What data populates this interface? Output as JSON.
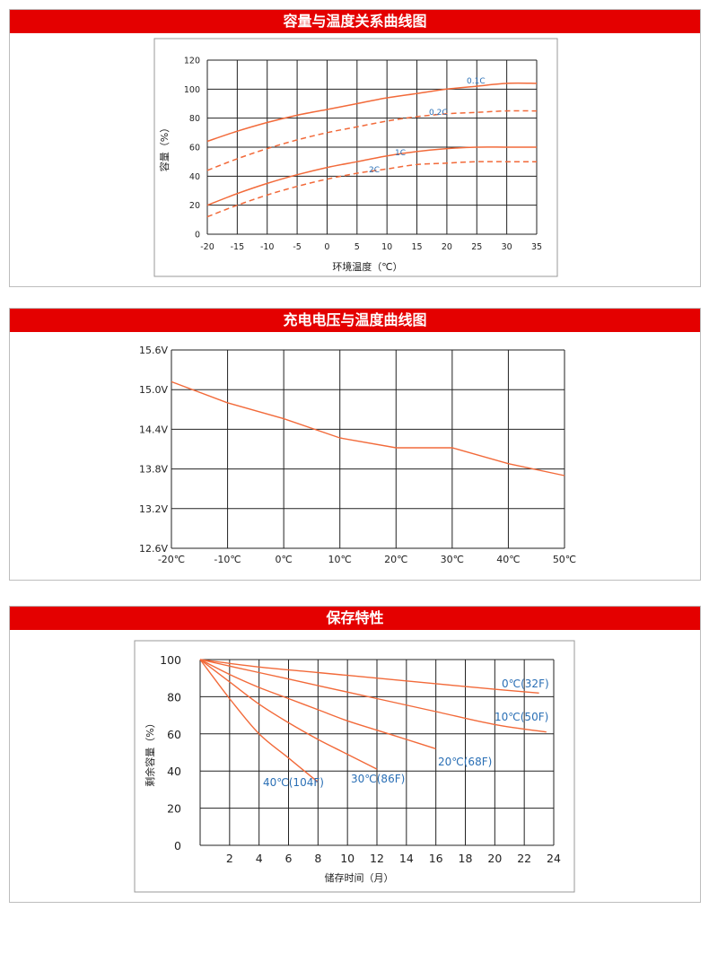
{
  "colors": {
    "header_bg": "#e40000",
    "curve": "#f26a3a",
    "label_blue": "#2a6fb5",
    "grid": "#222222"
  },
  "chart_data": [
    {
      "type": "line",
      "title": "容量与温度关系曲线图",
      "xlabel": "环境温度（℃）",
      "ylabel": "容量（%）",
      "xlim": [
        -20,
        35
      ],
      "ylim": [
        0,
        120
      ],
      "x_ticks": [
        "-20",
        "-15",
        "-10",
        "-5",
        "0",
        "5",
        "10",
        "15",
        "20",
        "25",
        "30",
        "35"
      ],
      "y_ticks": [
        "0",
        "20",
        "40",
        "60",
        "80",
        "100",
        "120"
      ],
      "series": [
        {
          "name": "0.1C",
          "style": "solid",
          "x": [
            -20,
            -15,
            -10,
            -5,
            0,
            5,
            10,
            15,
            20,
            25,
            30,
            35
          ],
          "y": [
            64,
            71,
            77,
            82,
            86,
            90,
            94,
            97,
            100,
            102,
            104,
            104
          ]
        },
        {
          "name": "0.2C",
          "style": "dashed",
          "x": [
            -20,
            -15,
            -10,
            -5,
            0,
            5,
            10,
            15,
            20,
            25,
            30,
            35
          ],
          "y": [
            44,
            52,
            59,
            65,
            70,
            74,
            78,
            81,
            83,
            84,
            85,
            85
          ]
        },
        {
          "name": "1C",
          "style": "solid",
          "x": [
            -20,
            -15,
            -10,
            -5,
            0,
            5,
            10,
            15,
            20,
            25,
            30,
            35
          ],
          "y": [
            20,
            28,
            35,
            41,
            46,
            50,
            54,
            57,
            59,
            60,
            60,
            60
          ]
        },
        {
          "name": "2C",
          "style": "dashed",
          "x": [
            -20,
            -15,
            -10,
            -5,
            0,
            5,
            10,
            15,
            20,
            25,
            30,
            35
          ],
          "y": [
            12,
            20,
            27,
            33,
            38,
            42,
            45,
            48,
            49,
            50,
            50,
            50
          ]
        }
      ],
      "series_labels": [
        "0.1C",
        "0.2C",
        "1C",
        "2C"
      ]
    },
    {
      "type": "line",
      "title": "充电电压与温度曲线图",
      "xlim": [
        -20,
        50
      ],
      "ylim": [
        12.6,
        15.6
      ],
      "x_ticks": [
        "-20℃",
        "-10℃",
        "0℃",
        "10℃",
        "20℃",
        "30℃",
        "40℃",
        "50℃"
      ],
      "y_ticks": [
        "12.6V",
        "13.2V",
        "13.8V",
        "14.4V",
        "15.0V",
        "15.6V"
      ],
      "series": [
        {
          "x": [
            -20,
            -10,
            0,
            10,
            20,
            30,
            40,
            50
          ],
          "y": [
            15.12,
            14.8,
            14.56,
            14.27,
            14.12,
            14.12,
            13.88,
            13.7
          ]
        }
      ]
    },
    {
      "type": "line",
      "title": "保存特性",
      "xlabel": "储存时间（月）",
      "ylabel": "剩余容量（%）",
      "xlim": [
        0,
        24
      ],
      "ylim": [
        0,
        100
      ],
      "x_ticks": [
        "2",
        "4",
        "6",
        "8",
        "10",
        "12",
        "14",
        "16",
        "18",
        "20",
        "22",
        "24"
      ],
      "y_ticks": [
        "0",
        "20",
        "40",
        "60",
        "80",
        "100"
      ],
      "series": [
        {
          "name": "0℃(32F)",
          "x": [
            0,
            4,
            8,
            12,
            16,
            20,
            23
          ],
          "y": [
            100,
            96,
            93,
            90,
            87,
            84,
            82
          ]
        },
        {
          "name": "10℃(50F)",
          "x": [
            0,
            4,
            8,
            12,
            16,
            20,
            23.5
          ],
          "y": [
            100,
            93,
            86,
            79,
            72,
            65,
            61
          ]
        },
        {
          "name": "20℃(68F)",
          "x": [
            0,
            2,
            4,
            6,
            8,
            10,
            12,
            14,
            16
          ],
          "y": [
            100,
            92,
            85,
            79,
            73,
            67,
            62,
            57,
            52
          ]
        },
        {
          "name": "30℃(86F)",
          "x": [
            0,
            2,
            4,
            6,
            8,
            10,
            12
          ],
          "y": [
            100,
            88,
            76,
            66,
            57,
            49,
            41
          ]
        },
        {
          "name": "40℃(104F)",
          "x": [
            0,
            2,
            4,
            6,
            8
          ],
          "y": [
            100,
            79,
            60,
            47,
            34
          ]
        }
      ]
    }
  ]
}
